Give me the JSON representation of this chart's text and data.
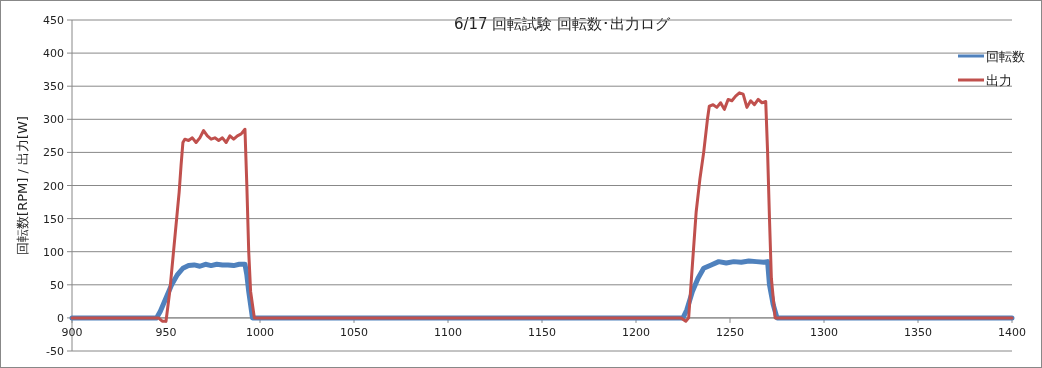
{
  "chart_data": {
    "type": "line",
    "title": "6/17 回転試験 回転数･出力ログ",
    "ylabel": "回転数[RPM] / 出力[W]",
    "xlim": [
      900,
      1400
    ],
    "xticks": [
      900,
      950,
      1000,
      1050,
      1100,
      1150,
      1200,
      1250,
      1300,
      1350,
      1400
    ],
    "ylim": [
      -50,
      450
    ],
    "yticks": [
      -50,
      0,
      50,
      100,
      150,
      200,
      250,
      300,
      350,
      400,
      450
    ],
    "grid": "y",
    "legend": "top right",
    "marker": "none",
    "line_style": "solid",
    "series": [
      {
        "name": "回転数",
        "color": "#4f81bd",
        "x": [
          900,
          945,
          947,
          950,
          953,
          956,
          959,
          962,
          965,
          968,
          971,
          974,
          977,
          980,
          983,
          986,
          989,
          992,
          993,
          994,
          996,
          1000,
          1225,
          1227,
          1230,
          1233,
          1236,
          1240,
          1244,
          1248,
          1252,
          1256,
          1260,
          1264,
          1268,
          1270,
          1271,
          1273,
          1275,
          1400
        ],
        "values": [
          0,
          0,
          10,
          30,
          50,
          65,
          75,
          79,
          80,
          78,
          81,
          79,
          81,
          80,
          80,
          79,
          81,
          81,
          65,
          40,
          0,
          0,
          0,
          12,
          40,
          60,
          75,
          80,
          85,
          83,
          85,
          84,
          86,
          85,
          84,
          85,
          50,
          20,
          0,
          0
        ]
      },
      {
        "name": "出力",
        "color": "#c0504d",
        "x": [
          900,
          946,
          948,
          950,
          952,
          954,
          956,
          957,
          958,
          959,
          960,
          962,
          964,
          966,
          968,
          970,
          972,
          974,
          976,
          978,
          980,
          982,
          984,
          986,
          988,
          990,
          992,
          993,
          994,
          995,
          997,
          1000,
          1224,
          1226.5,
          1228,
          1230,
          1232,
          1234,
          1236,
          1238,
          1239,
          1241,
          1243,
          1245,
          1247,
          1249,
          1251,
          1253,
          1255,
          1257,
          1259,
          1261,
          1263,
          1265,
          1267,
          1269,
          1270,
          1271,
          1272,
          1274,
          1400
        ],
        "values": [
          0,
          0,
          -5,
          -5,
          40,
          100,
          160,
          190,
          230,
          265,
          270,
          268,
          272,
          265,
          272,
          283,
          275,
          270,
          272,
          268,
          272,
          265,
          275,
          270,
          275,
          278,
          285,
          200,
          100,
          40,
          0,
          0,
          0,
          -5,
          0,
          80,
          160,
          210,
          250,
          300,
          320,
          322,
          318,
          325,
          315,
          330,
          328,
          335,
          340,
          338,
          318,
          328,
          322,
          330,
          325,
          327,
          250,
          150,
          60,
          0,
          0
        ]
      }
    ]
  }
}
